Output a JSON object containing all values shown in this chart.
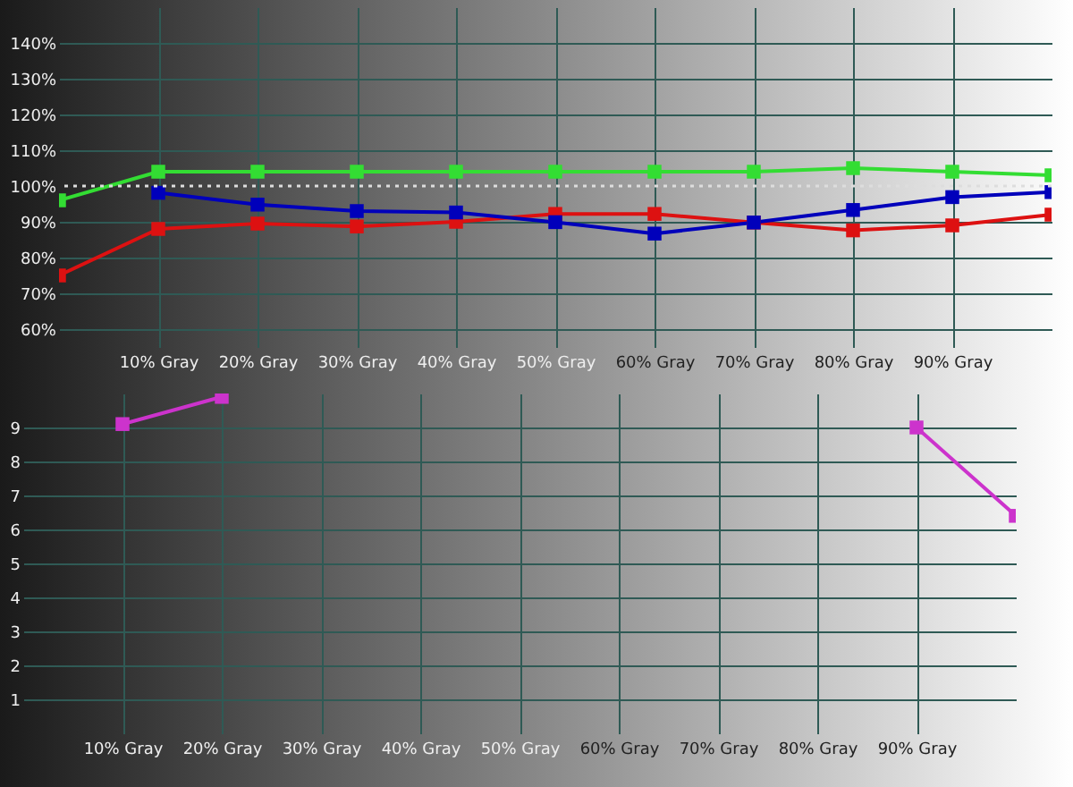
{
  "chart_data": [
    {
      "type": "line",
      "x": [
        0,
        10,
        20,
        30,
        40,
        50,
        60,
        70,
        80,
        90,
        100
      ],
      "xlim": [
        0,
        100
      ],
      "xticks": [
        {
          "value": 10,
          "label": "10% Gray"
        },
        {
          "value": 20,
          "label": "20% Gray"
        },
        {
          "value": 30,
          "label": "30% Gray"
        },
        {
          "value": 40,
          "label": "40% Gray"
        },
        {
          "value": 50,
          "label": "50% Gray"
        },
        {
          "value": 60,
          "label": "60% Gray"
        },
        {
          "value": 70,
          "label": "70% Gray"
        },
        {
          "value": 80,
          "label": "80% Gray"
        },
        {
          "value": 90,
          "label": "90% Gray"
        }
      ],
      "ylim": [
        55,
        150
      ],
      "yticks": [
        {
          "value": 60,
          "label": "60%"
        },
        {
          "value": 70,
          "label": "70%"
        },
        {
          "value": 80,
          "label": "80%"
        },
        {
          "value": 90,
          "label": "90%"
        },
        {
          "value": 100,
          "label": "100%"
        },
        {
          "value": 110,
          "label": "110%"
        },
        {
          "value": 120,
          "label": "120%"
        },
        {
          "value": 130,
          "label": "130%"
        },
        {
          "value": 140,
          "label": "140%"
        }
      ],
      "series": [
        {
          "color": "#33dd33",
          "values": [
            96,
            104,
            104,
            104,
            104,
            104,
            104,
            104,
            105,
            104,
            103
          ]
        },
        {
          "color": "#dd1111",
          "values": [
            75,
            88,
            89.5,
            88.7,
            90,
            92.2,
            92.2,
            89.8,
            87.6,
            89,
            92
          ]
        },
        {
          "color": "#0000bb",
          "values": [
            null,
            98.1,
            94.8,
            93,
            92.6,
            89.9,
            86.7,
            89.8,
            93.3,
            96.9,
            98.3
          ]
        }
      ],
      "ref_lines": [
        {
          "axis": "y",
          "value": 100,
          "color": "#dddddd",
          "line_style": "dotted"
        }
      ],
      "grid": true,
      "marker": "square",
      "legend": false
    },
    {
      "type": "line",
      "x": [
        10,
        20,
        30,
        40,
        50,
        60,
        70,
        80,
        90,
        100
      ],
      "xlim": [
        0,
        100
      ],
      "xticks": [
        {
          "value": 10,
          "label": "10% Gray"
        },
        {
          "value": 20,
          "label": "20% Gray"
        },
        {
          "value": 30,
          "label": "30% Gray"
        },
        {
          "value": 40,
          "label": "40% Gray"
        },
        {
          "value": 50,
          "label": "50% Gray"
        },
        {
          "value": 60,
          "label": "60% Gray"
        },
        {
          "value": 70,
          "label": "70% Gray"
        },
        {
          "value": 80,
          "label": "80% Gray"
        },
        {
          "value": 90,
          "label": "90% Gray"
        }
      ],
      "ylim": [
        0,
        10
      ],
      "yticks": [
        1,
        2,
        3,
        4,
        5,
        6,
        7,
        8,
        9
      ],
      "series": [
        {
          "color": "#cc33cc",
          "values": [
            9.1,
            9.9,
            null,
            null,
            null,
            null,
            null,
            null,
            9.0,
            6.4
          ]
        }
      ],
      "grid": true,
      "marker": "square",
      "legend": false
    }
  ]
}
